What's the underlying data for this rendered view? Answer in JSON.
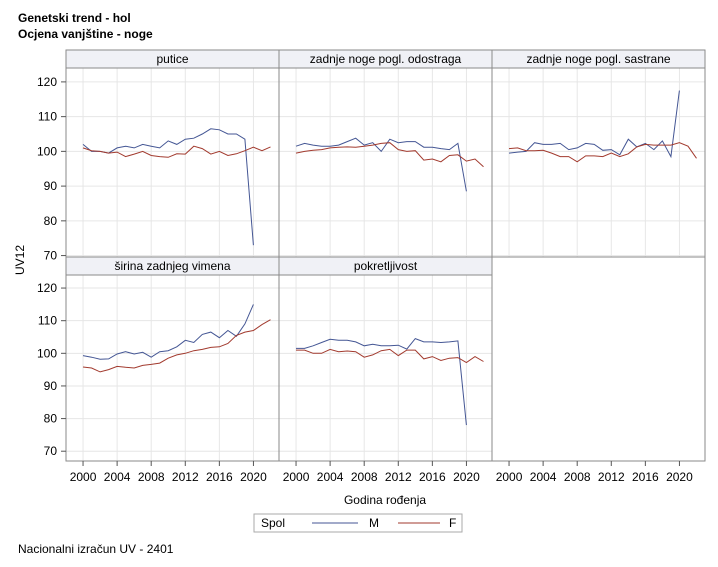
{
  "header": {
    "title": "Genetski trend - hol",
    "subtitle": "Ocjena vanjštine - noge"
  },
  "footnote": "Nacionalni izračun UV - 2401",
  "colors": {
    "M": "#445694",
    "F": "#a23a2e",
    "grid": "#e6e6e6",
    "panel_head": "#f0f1f6",
    "frame": "#8a8a8a"
  },
  "chart_data": {
    "type": "line",
    "xlabel": "Godina rođenja",
    "ylabel": "UV12",
    "xlim": [
      1998,
      2023
    ],
    "ylim": [
      67,
      124
    ],
    "xticks": [
      "2000",
      "2004",
      "2008",
      "2012",
      "2016",
      "2020"
    ],
    "yticks": [
      "70",
      "80",
      "90",
      "100",
      "110",
      "120"
    ],
    "legend": {
      "title": "Spol",
      "entries": [
        "M",
        "F"
      ],
      "position": "bottom"
    },
    "panels": [
      {
        "title": "putice",
        "series": [
          {
            "name": "M",
            "x": [
              2000,
              2001,
              2002,
              2003,
              2004,
              2005,
              2006,
              2007,
              2008,
              2009,
              2010,
              2011,
              2012,
              2013,
              2014,
              2015,
              2016,
              2017,
              2018,
              2019,
              2020
            ],
            "values": [
              102,
              100,
              100,
              99.5,
              101,
              101.5,
              101,
              102,
              101.5,
              101,
              103,
              102,
              103.5,
              103.8,
              105,
              106.5,
              106.2,
              105,
              105,
              103.5,
              73
            ]
          },
          {
            "name": "F",
            "x": [
              2000,
              2001,
              2002,
              2003,
              2004,
              2005,
              2006,
              2007,
              2008,
              2009,
              2010,
              2011,
              2012,
              2013,
              2014,
              2015,
              2016,
              2017,
              2018,
              2019,
              2020,
              2021,
              2022
            ],
            "values": [
              101,
              100.2,
              100,
              99.5,
              99.8,
              98.5,
              99.2,
              100,
              98.8,
              98.5,
              98.3,
              99.3,
              99.2,
              101.5,
              100.8,
              99.2,
              100,
              98.8,
              99.3,
              100.2,
              101.2,
              100.2,
              101.3
            ]
          }
        ]
      },
      {
        "title": "zadnje noge pogl. odostraga",
        "series": [
          {
            "name": "M",
            "x": [
              2000,
              2001,
              2002,
              2003,
              2004,
              2005,
              2006,
              2007,
              2008,
              2009,
              2010,
              2011,
              2012,
              2013,
              2014,
              2015,
              2016,
              2017,
              2018,
              2019,
              2020
            ],
            "values": [
              101.5,
              102.3,
              101.8,
              101.5,
              101.5,
              101.8,
              102.8,
              103.8,
              101.8,
              102.5,
              100,
              103.5,
              102.5,
              102.8,
              102.8,
              101.2,
              101.2,
              100.8,
              100.5,
              102.3,
              88.5
            ]
          },
          {
            "name": "F",
            "x": [
              2000,
              2001,
              2002,
              2003,
              2004,
              2005,
              2006,
              2007,
              2008,
              2009,
              2010,
              2011,
              2012,
              2013,
              2014,
              2015,
              2016,
              2017,
              2018,
              2019,
              2020,
              2021,
              2022
            ],
            "values": [
              99.5,
              100,
              100.3,
              100.5,
              101,
              101.2,
              101.3,
              101.2,
              101.5,
              101.8,
              102.3,
              102.5,
              100.5,
              100,
              100.2,
              97.5,
              97.8,
              97,
              98.8,
              99,
              97.2,
              97.8,
              95.6
            ]
          }
        ]
      },
      {
        "title": "zadnje noge pogl. sastrane",
        "series": [
          {
            "name": "M",
            "x": [
              2000,
              2001,
              2002,
              2003,
              2004,
              2005,
              2006,
              2007,
              2008,
              2009,
              2010,
              2011,
              2012,
              2013,
              2014,
              2015,
              2016,
              2017,
              2018,
              2019,
              2020
            ],
            "values": [
              99.5,
              99.8,
              100,
              102.5,
              102,
              102,
              102.3,
              100.5,
              101,
              102.3,
              102,
              100.3,
              100.5,
              99,
              103.5,
              101.3,
              102.3,
              100.5,
              103,
              98.5,
              117.5
            ]
          },
          {
            "name": "F",
            "x": [
              2000,
              2001,
              2002,
              2003,
              2004,
              2005,
              2006,
              2007,
              2008,
              2009,
              2010,
              2011,
              2012,
              2013,
              2014,
              2015,
              2016,
              2017,
              2018,
              2019,
              2020,
              2021,
              2022
            ],
            "values": [
              100.8,
              101,
              100.2,
              100.2,
              100.3,
              99.5,
              98.5,
              98.5,
              97,
              98.7,
              98.7,
              98.5,
              99.5,
              98.5,
              99.3,
              101.3,
              102,
              101.8,
              101.8,
              101.8,
              102.5,
              101.5,
              98
            ]
          }
        ]
      },
      {
        "title": "širina zadnjeg vimena",
        "series": [
          {
            "name": "M",
            "x": [
              2000,
              2001,
              2002,
              2003,
              2004,
              2005,
              2006,
              2007,
              2008,
              2009,
              2010,
              2011,
              2012,
              2013,
              2014,
              2015,
              2016,
              2017,
              2018,
              2019,
              2020
            ],
            "values": [
              99.3,
              98.8,
              98.2,
              98.3,
              99.8,
              100.5,
              99.8,
              100.3,
              98.8,
              100.5,
              100.8,
              102,
              104,
              103.3,
              105.8,
              106.5,
              104.8,
              107,
              105.2,
              109,
              115
            ]
          },
          {
            "name": "F",
            "x": [
              2000,
              2001,
              2002,
              2003,
              2004,
              2005,
              2006,
              2007,
              2008,
              2009,
              2010,
              2011,
              2012,
              2013,
              2014,
              2015,
              2016,
              2017,
              2018,
              2019,
              2020,
              2021,
              2022
            ],
            "values": [
              95.8,
              95.5,
              94.3,
              95,
              96,
              95.7,
              95.5,
              96.3,
              96.6,
              97,
              98.5,
              99.5,
              100,
              100.8,
              101.2,
              101.8,
              102,
              103,
              105.5,
              106.5,
              107,
              108.8,
              110.3
            ]
          }
        ]
      },
      {
        "title": "pokretljivost",
        "series": [
          {
            "name": "M",
            "x": [
              2000,
              2001,
              2002,
              2003,
              2004,
              2005,
              2006,
              2007,
              2008,
              2009,
              2010,
              2011,
              2012,
              2013,
              2014,
              2015,
              2016,
              2017,
              2018,
              2019,
              2020
            ],
            "values": [
              101.5,
              101.5,
              102.3,
              103.3,
              104.3,
              104,
              104,
              103.5,
              102.3,
              102.8,
              102.3,
              102.3,
              102.5,
              101.3,
              104.5,
              103.5,
              103.5,
              103.3,
              103.5,
              103.8,
              78
            ]
          },
          {
            "name": "F",
            "x": [
              2000,
              2001,
              2002,
              2003,
              2004,
              2005,
              2006,
              2007,
              2008,
              2009,
              2010,
              2011,
              2012,
              2013,
              2014,
              2015,
              2016,
              2017,
              2018,
              2019,
              2020,
              2021,
              2022
            ],
            "values": [
              101,
              101,
              100,
              100,
              101.2,
              100.5,
              100.7,
              100.5,
              98.8,
              99.5,
              100.8,
              101.2,
              99.3,
              101,
              101,
              98.3,
              99,
              97.8,
              98.5,
              98.7,
              97.2,
              99,
              97.5
            ]
          }
        ]
      }
    ]
  }
}
